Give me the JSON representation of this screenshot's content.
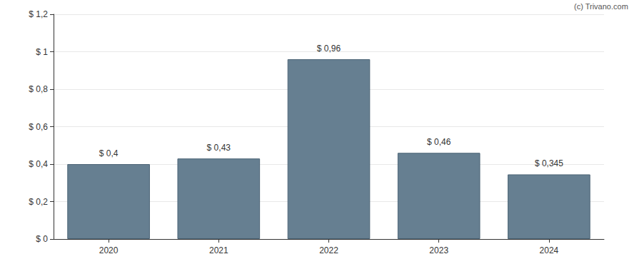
{
  "chart_data": {
    "type": "bar",
    "annotation": "(c) Trivano.com",
    "categories": [
      "2020",
      "2021",
      "2022",
      "2023",
      "2024"
    ],
    "values": [
      0.4,
      0.43,
      0.96,
      0.46,
      0.345
    ],
    "value_labels": [
      "$ 0,4",
      "$ 0,43",
      "$ 0,96",
      "$ 0,46",
      "$ 0,345"
    ],
    "color": "#667f91",
    "ylim": [
      0,
      1.2
    ],
    "yticks": [
      {
        "value": 0,
        "label": "$ 0"
      },
      {
        "value": 0.2,
        "label": "$ 0,2"
      },
      {
        "value": 0.4,
        "label": "$ 0,4"
      },
      {
        "value": 0.6,
        "label": "$ 0,6"
      },
      {
        "value": 0.8,
        "label": "$ 0,8"
      },
      {
        "value": 1,
        "label": "$ 1"
      },
      {
        "value": 1.2,
        "label": "$ 1,2"
      }
    ],
    "grid": true,
    "data_labels": true
  }
}
